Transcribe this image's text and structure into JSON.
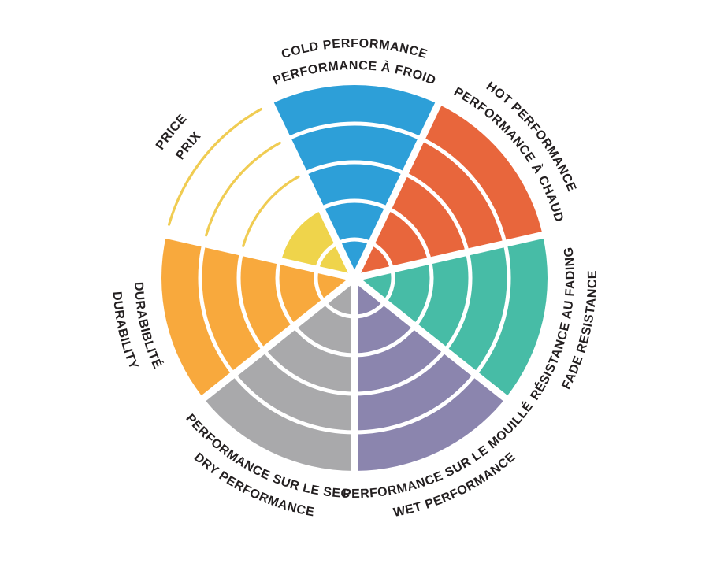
{
  "page": {
    "background_color": "#ffffff",
    "text_color": "#231f20"
  },
  "chart_data": {
    "type": "polar-sector-wheel",
    "title": "",
    "description": "Performance rating wheel with 7 bilingual criteria; each sector filled to its rating out of 5 concentric rings",
    "max_rings": 5,
    "separator_color": "#ffffff",
    "legend_position": "around-wheel",
    "grid": "concentric-rings",
    "categories": [
      {
        "label_en": "COLD PERFORMANCE",
        "label_fr": "PERFORMANCE À FROID",
        "value": 5,
        "color": "#2D9FD8"
      },
      {
        "label_en": "HOT PERFORMANCE",
        "label_fr": "PERFORMANCE À CHAUD",
        "value": 5,
        "color": "#E8663C"
      },
      {
        "label_en": "FADE RESISTANCE",
        "label_fr": "RÉSISTANCE AU FADING",
        "value": 5,
        "color": "#47BCA6"
      },
      {
        "label_en": "WET PERFORMANCE",
        "label_fr": "PERFORMANCE SUR LE MOUILLÉ",
        "value": 5,
        "color": "#8B85AE"
      },
      {
        "label_en": "DRY PERFORMANCE",
        "label_fr": "PERFORMANCE SUR LE SEC",
        "value": 5,
        "color": "#A9A9AB"
      },
      {
        "label_en": "DURABILITY",
        "label_fr": "DURABIBLITÉ",
        "value": 5,
        "color": "#F8A93D"
      },
      {
        "label_en": "PRICE",
        "label_fr": "PRIX",
        "value": 2,
        "color": "#EFD44B",
        "unfilled_ring_color": "#F0CC52"
      }
    ]
  }
}
